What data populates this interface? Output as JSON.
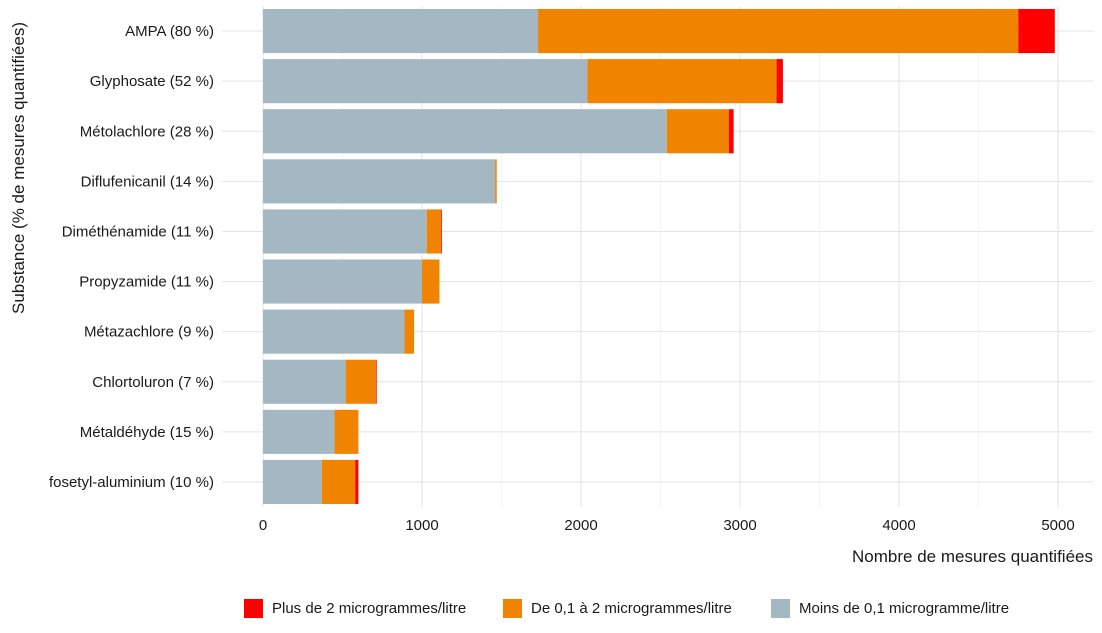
{
  "chart_data": {
    "type": "bar",
    "orientation": "horizontal",
    "stacked": true,
    "title": "",
    "xlabel": "Nombre de mesures quantifiées",
    "ylabel": "Substance (% de mesures quantifiées)",
    "xlim": [
      0,
      5200
    ],
    "x_ticks": [
      "0",
      "1000",
      "2000",
      "3000",
      "4000",
      "5000"
    ],
    "grid": true,
    "legend_position": "bottom",
    "categories": [
      "AMPA (80 %)",
      "Glyphosate (52 %)",
      "Métolachlore (28 %)",
      "Diflufenicanil (14 %)",
      "Diméthénamide (11 %)",
      "Propyzamide (11 %)",
      "Métazachlore (9 %)",
      "Chlortoluron (7 %)",
      "Métaldéhyde (15 %)",
      "fosetyl-aluminium (10 %)"
    ],
    "series": [
      {
        "name": "Moins de 0,1 microgramme/litre",
        "color": "#a3b8c2",
        "values": [
          1730,
          2040,
          2540,
          1460,
          1030,
          1000,
          890,
          520,
          450,
          370
        ]
      },
      {
        "name": "De 0,1 à 2 microgrammes/litre",
        "color": "#f08300",
        "values": [
          3020,
          1190,
          390,
          10,
          90,
          110,
          60,
          190,
          150,
          210
        ]
      },
      {
        "name": "Plus de 2 microgrammes/litre",
        "color": "#ff0000",
        "values": [
          230,
          40,
          30,
          0,
          5,
          0,
          0,
          5,
          0,
          20
        ]
      }
    ],
    "legend_order": [
      "Plus de 2 microgrammes/litre",
      "De 0,1 à 2 microgrammes/litre",
      "Moins de 0,1 microgramme/litre"
    ]
  }
}
